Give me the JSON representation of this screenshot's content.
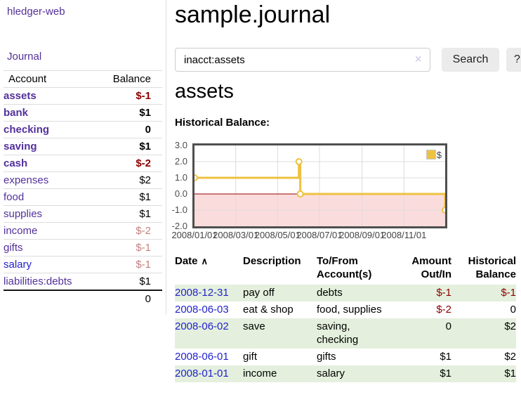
{
  "colors": {
    "accent_purple": "#53309b",
    "link_blue": "#2222cc",
    "negative_strong": "#8b0000",
    "negative_dim": "#c4807f",
    "row_stripe_green": "#e4f0dd",
    "chart_line_gold": "#EDC240",
    "chart_negative_fill": "#fbdcdc",
    "chart_zero_line": "#990000"
  },
  "sidebar": {
    "brand": "hledger-web",
    "journal_link": "Journal",
    "accounts": {
      "header": {
        "account": "Account",
        "balance": "Balance"
      },
      "rows": [
        {
          "name": "assets",
          "balance": "$-1",
          "level": 1,
          "emph": true,
          "neg": "strong",
          "link": "purple"
        },
        {
          "name": "bank",
          "balance": "$1",
          "level": 2,
          "emph": true,
          "neg": "none",
          "link": "purple"
        },
        {
          "name": "checking",
          "balance": "0",
          "level": 3,
          "emph": true,
          "neg": "none",
          "link": "purple"
        },
        {
          "name": "saving",
          "balance": "$1",
          "level": 3,
          "emph": true,
          "neg": "none",
          "link": "purple"
        },
        {
          "name": "cash",
          "balance": "$-2",
          "level": 2,
          "emph": true,
          "neg": "strong",
          "link": "purple"
        },
        {
          "name": "expenses",
          "balance": "$2",
          "level": 1,
          "emph": false,
          "neg": "none",
          "link": "purple"
        },
        {
          "name": "food",
          "balance": "$1",
          "level": 2,
          "emph": false,
          "neg": "none",
          "link": "purple"
        },
        {
          "name": "supplies",
          "balance": "$1",
          "level": 2,
          "emph": false,
          "neg": "none",
          "link": "purple"
        },
        {
          "name": "income",
          "balance": "$-2",
          "level": 1,
          "emph": false,
          "neg": "dim",
          "link": "purple"
        },
        {
          "name": "gifts",
          "balance": "$-1",
          "level": 2,
          "emph": false,
          "neg": "dim",
          "link": "purple"
        },
        {
          "name": "salary",
          "balance": "$-1",
          "level": 2,
          "emph": false,
          "neg": "dim",
          "link": "blue"
        },
        {
          "name": "liabilities:debts",
          "balance": "$1",
          "level": 1,
          "emph": false,
          "neg": "none",
          "link": "purple"
        }
      ],
      "total": "0"
    }
  },
  "main": {
    "title": "sample.journal",
    "search": {
      "value": "inacct:assets",
      "clear_icon": "×",
      "search_button": "Search",
      "help_button": "?"
    },
    "account_heading": "assets",
    "chart_label": "Historical Balance:",
    "register": {
      "headers": {
        "date": "Date",
        "sort_icon": "∧",
        "description": "Description",
        "accounts": "To/From Account(s)",
        "amount": "Amount Out/In",
        "balance": "Historical Balance"
      },
      "rows": [
        {
          "date": "2008-12-31",
          "description": "pay off",
          "accounts": "debts",
          "amount": "$-1",
          "balance": "$-1"
        },
        {
          "date": "2008-06-03",
          "description": "eat & shop",
          "accounts": "food, supplies",
          "amount": "$-2",
          "balance": "0"
        },
        {
          "date": "2008-06-02",
          "description": "save",
          "accounts": "saving, checking",
          "amount": "0",
          "balance": "$2"
        },
        {
          "date": "2008-06-01",
          "description": "gift",
          "accounts": "gifts",
          "amount": "$1",
          "balance": "$2"
        },
        {
          "date": "2008-01-01",
          "description": "income",
          "accounts": "salary",
          "amount": "$1",
          "balance": "$1"
        }
      ]
    }
  },
  "chart_data": {
    "type": "line",
    "step": "after",
    "title": "Historical Balance",
    "x_range": [
      "2008/01/01",
      "2008/12/31"
    ],
    "ylim": [
      -2.0,
      3.0
    ],
    "ytick_labels": [
      "3.0",
      "2.0",
      "1.0",
      "0.0",
      "-1.0",
      "-2.0"
    ],
    "xtick_labels": [
      "2008/01/01",
      "2008/03/01",
      "2008/05/01",
      "2008/07/01",
      "2008/09/01",
      "2008/11/01"
    ],
    "series": [
      {
        "name": "$",
        "color": "#EDC240",
        "points": [
          {
            "date": "2008/01/01",
            "value": 1.0
          },
          {
            "date": "2008/06/01",
            "value": 2.0
          },
          {
            "date": "2008/06/03",
            "value": 0.0
          },
          {
            "date": "2008/12/31",
            "value": -1.0
          }
        ]
      }
    ],
    "legend": {
      "label": "$",
      "position": "top-right"
    },
    "grid": true,
    "negative_region_below": 0
  }
}
